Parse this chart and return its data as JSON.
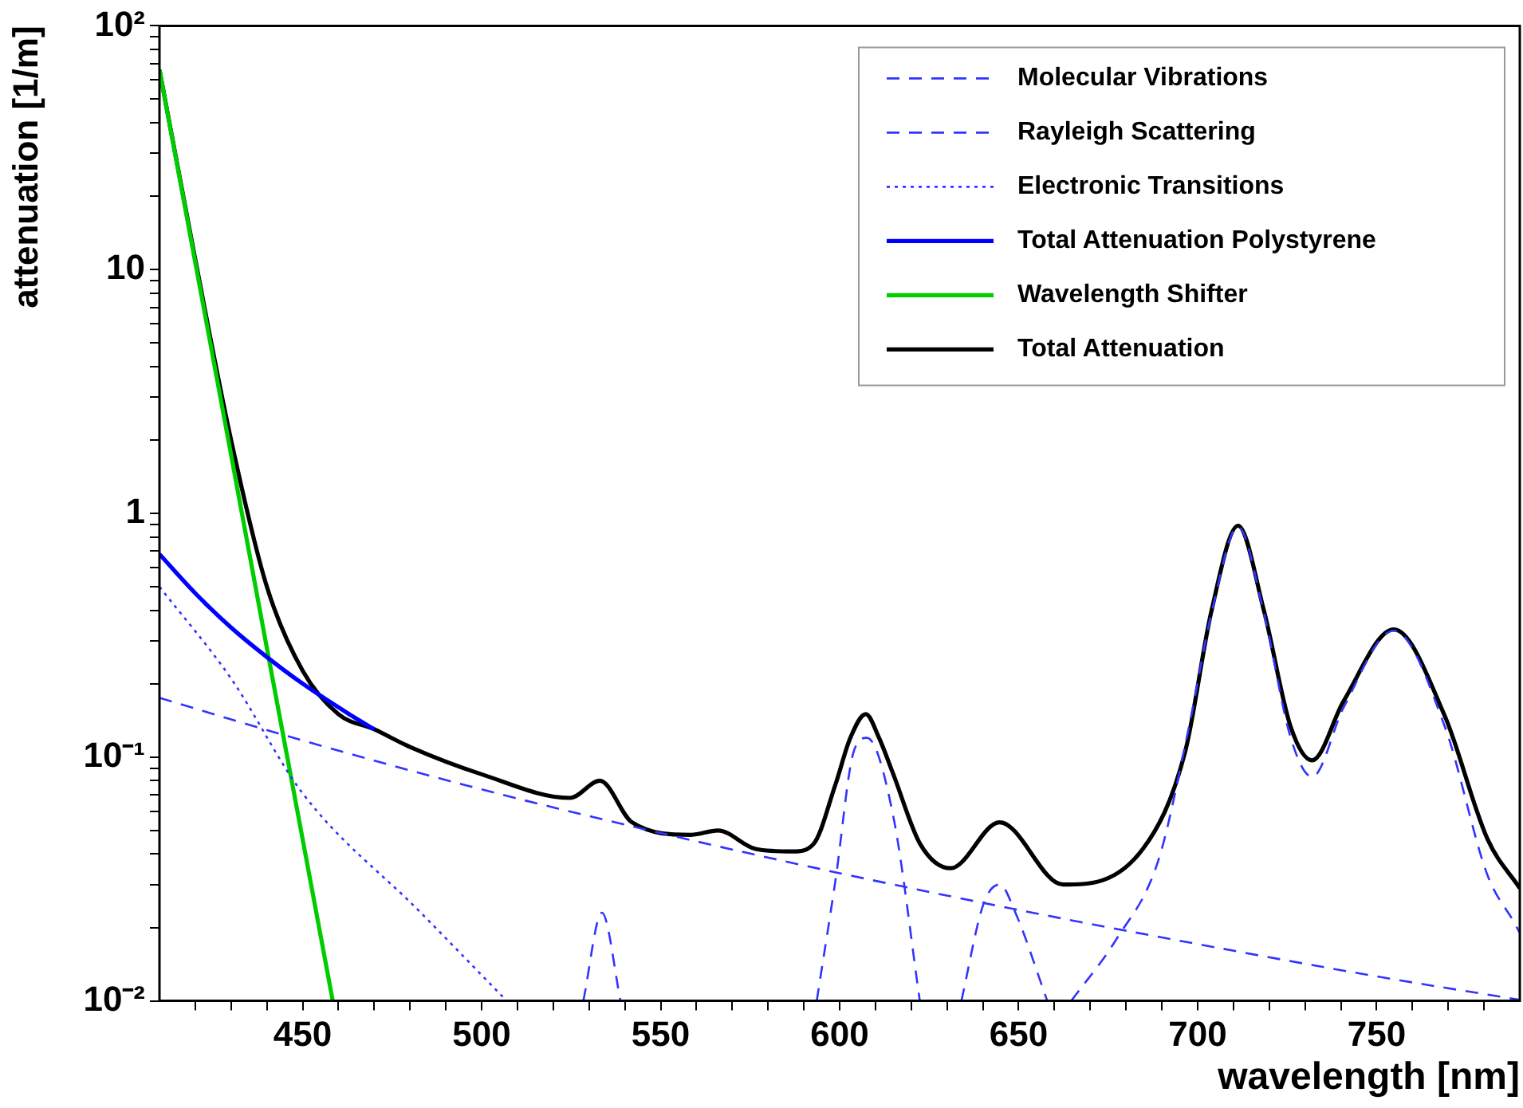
{
  "chart_data": {
    "type": "line",
    "xlabel": "wavelength [nm]",
    "ylabel": "attenuation [1/m]",
    "log": "y",
    "grid": false,
    "legend": "top right",
    "xlim": [
      410,
      790
    ],
    "xticks": [
      {
        "value": 420,
        "label": null
      },
      {
        "value": 430,
        "label": null
      },
      {
        "value": 440,
        "label": null
      },
      450,
      {
        "value": 460,
        "label": null
      },
      {
        "value": 470,
        "label": null
      },
      {
        "value": 480,
        "label": null
      },
      {
        "value": 490,
        "label": null
      },
      500,
      {
        "value": 510,
        "label": null
      },
      {
        "value": 520,
        "label": null
      },
      {
        "value": 530,
        "label": null
      },
      {
        "value": 540,
        "label": null
      },
      550,
      {
        "value": 560,
        "label": null
      },
      {
        "value": 570,
        "label": null
      },
      {
        "value": 580,
        "label": null
      },
      {
        "value": 590,
        "label": null
      },
      600,
      {
        "value": 610,
        "label": null
      },
      {
        "value": 620,
        "label": null
      },
      {
        "value": 630,
        "label": null
      },
      {
        "value": 640,
        "label": null
      },
      650,
      {
        "value": 660,
        "label": null
      },
      {
        "value": 670,
        "label": null
      },
      {
        "value": 680,
        "label": null
      },
      {
        "value": 690,
        "label": null
      },
      700,
      {
        "value": 710,
        "label": null
      },
      {
        "value": 720,
        "label": null
      },
      {
        "value": 730,
        "label": null
      },
      {
        "value": 740,
        "label": null
      },
      750,
      {
        "value": 760,
        "label": null
      },
      {
        "value": 770,
        "label": null
      },
      {
        "value": 780,
        "label": null
      }
    ],
    "ylim": [
      0.01,
      100
    ],
    "yticks": [
      {
        "value": 0.01,
        "label": "10⁻²"
      },
      {
        "value": 0.02,
        "label": null
      },
      {
        "value": 0.03,
        "label": null
      },
      {
        "value": 0.04,
        "label": null
      },
      {
        "value": 0.05,
        "label": null
      },
      {
        "value": 0.06,
        "label": null
      },
      {
        "value": 0.07,
        "label": null
      },
      {
        "value": 0.08,
        "label": null
      },
      {
        "value": 0.09,
        "label": null
      },
      {
        "value": 0.1,
        "label": "10⁻¹"
      },
      {
        "value": 0.2,
        "label": null
      },
      {
        "value": 0.3,
        "label": null
      },
      {
        "value": 0.4,
        "label": null
      },
      {
        "value": 0.5,
        "label": null
      },
      {
        "value": 0.6,
        "label": null
      },
      {
        "value": 0.7,
        "label": null
      },
      {
        "value": 0.8,
        "label": null
      },
      {
        "value": 0.9,
        "label": null
      },
      1,
      {
        "value": 2,
        "label": null
      },
      {
        "value": 3,
        "label": null
      },
      {
        "value": 4,
        "label": null
      },
      {
        "value": 5,
        "label": null
      },
      {
        "value": 6,
        "label": null
      },
      {
        "value": 7,
        "label": null
      },
      {
        "value": 8,
        "label": null
      },
      {
        "value": 9,
        "label": null
      },
      10,
      {
        "value": 20,
        "label": null
      },
      {
        "value": 30,
        "label": null
      },
      {
        "value": 40,
        "label": null
      },
      {
        "value": 50,
        "label": null
      },
      {
        "value": 60,
        "label": null
      },
      {
        "value": 70,
        "label": null
      },
      {
        "value": 80,
        "label": null
      },
      {
        "value": 90,
        "label": null
      },
      {
        "value": 100,
        "label": "10²"
      }
    ],
    "series": [
      {
        "name": "Molecular Vibrations",
        "color": "#3333ff",
        "line_style": "dashed",
        "x": [
          528.4,
          533.6,
          538.8,
          560,
          593.6,
          598.8,
          603.9,
          607.6,
          615,
          622.4,
          628,
          634,
          640.2,
          644.7,
          649.1,
          658,
          661,
          664.7,
          677.2,
          689.1,
          697.3,
          703.9,
          711.3,
          718.5,
          726,
          732,
          740.8,
          754.8,
          769,
          781,
          788.4,
          790
        ],
        "values": [
          0.01,
          0.023,
          0.01,
          null,
          0.01,
          0.031,
          0.105,
          0.12,
          0.057,
          0.01,
          null,
          0.01,
          0.025,
          0.03,
          0.023,
          0.01,
          null,
          0.01,
          0.0178,
          0.038,
          0.127,
          0.39,
          0.88,
          0.39,
          0.12,
          0.083,
          0.16,
          0.33,
          0.134,
          0.0327,
          0.021,
          0.019
        ]
      },
      {
        "name": "Rayleigh Scattering",
        "color": "#3333ff",
        "line_style": "dashed",
        "x": [
          410,
          450,
          500,
          550,
          600,
          650,
          700,
          750,
          790
        ],
        "values": [
          0.175,
          0.117,
          0.0737,
          0.0488,
          0.0334,
          0.0236,
          0.0171,
          0.0126,
          0.0101
        ]
      },
      {
        "name": "Electronic Transitions",
        "color": "#3333ff",
        "line_style": "dotted",
        "x": [
          410,
          430,
          450,
          483,
          507
        ],
        "values": [
          0.5,
          0.21,
          0.071,
          0.023,
          0.01
        ]
      },
      {
        "name": "Total Attenuation Polystyrene",
        "color": "#0000ff",
        "line_style": "solid",
        "x": [
          410,
          420,
          430,
          439.6,
          450,
          463,
          470
        ],
        "values": [
          0.68,
          0.47,
          0.34,
          0.26,
          0.2,
          0.15,
          0.13
        ]
      },
      {
        "name": "Wavelength Shifter",
        "color": "#00cc00",
        "line_style": "solid",
        "x": [
          410,
          420,
          430,
          440,
          450,
          458.4
        ],
        "values": [
          66,
          10.7,
          1.74,
          0.28,
          0.046,
          0.01
        ]
      },
      {
        "name": "Total Attenuation",
        "color": "#000000",
        "line_style": "solid",
        "x": [
          410,
          420,
          430,
          440,
          450,
          460,
          470,
          480,
          500,
          524.7,
          533,
          542,
          558.5,
          566,
          576.5,
          587,
          592.7,
          598.8,
          603,
          607.3,
          611,
          615,
          622.5,
          631,
          644.7,
          662.4,
          684.7,
          696.5,
          703.9,
          711.3,
          718.5,
          726,
          732,
          740.8,
          754.8,
          769,
          781,
          790
        ],
        "values": [
          66,
          11,
          2.0,
          0.5,
          0.226,
          0.15,
          0.13,
          0.11,
          0.085,
          0.068,
          0.08,
          0.054,
          0.048,
          0.05,
          0.042,
          0.041,
          0.044,
          0.077,
          0.12,
          0.15,
          0.12,
          0.085,
          0.044,
          0.035,
          0.054,
          0.03,
          0.042,
          0.105,
          0.4,
          0.89,
          0.4,
          0.133,
          0.097,
          0.17,
          0.334,
          0.148,
          0.046,
          0.029
        ]
      }
    ]
  }
}
